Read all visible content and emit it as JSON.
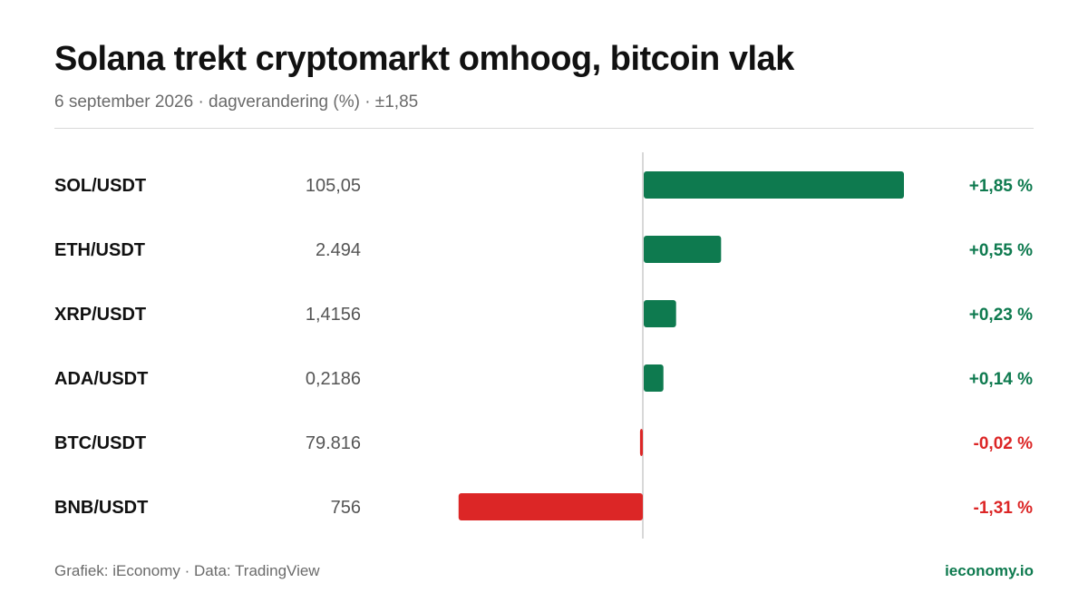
{
  "header": {
    "title": "Solana trekt cryptomarkt omhoog, bitcoin vlak",
    "subtitle": "6 september 2026 · dagverandering (%) · ±1,85"
  },
  "footer": {
    "credit": "Grafiek: iEconomy · Data: TradingView",
    "brand": "ieconomy.io"
  },
  "colors": {
    "positive": "#0e7a4f",
    "negative": "#dc2626",
    "axis": "#cccccc"
  },
  "chart_data": {
    "type": "bar",
    "orientation": "horizontal",
    "xlim": [
      -1.85,
      1.85
    ],
    "grid": false,
    "rows": [
      {
        "pair": "SOL/USDT",
        "price": "105,05",
        "change": 1.85,
        "change_label": "+1,85 %"
      },
      {
        "pair": "ETH/USDT",
        "price": "2.494",
        "change": 0.55,
        "change_label": "+0,55 %"
      },
      {
        "pair": "XRP/USDT",
        "price": "1,4156",
        "change": 0.23,
        "change_label": "+0,23 %"
      },
      {
        "pair": "ADA/USDT",
        "price": "0,2186",
        "change": 0.14,
        "change_label": "+0,14 %"
      },
      {
        "pair": "BTC/USDT",
        "price": "79.816",
        "change": -0.02,
        "change_label": "-0,02 %"
      },
      {
        "pair": "BNB/USDT",
        "price": "756",
        "change": -1.31,
        "change_label": "-1,31 %"
      }
    ]
  }
}
